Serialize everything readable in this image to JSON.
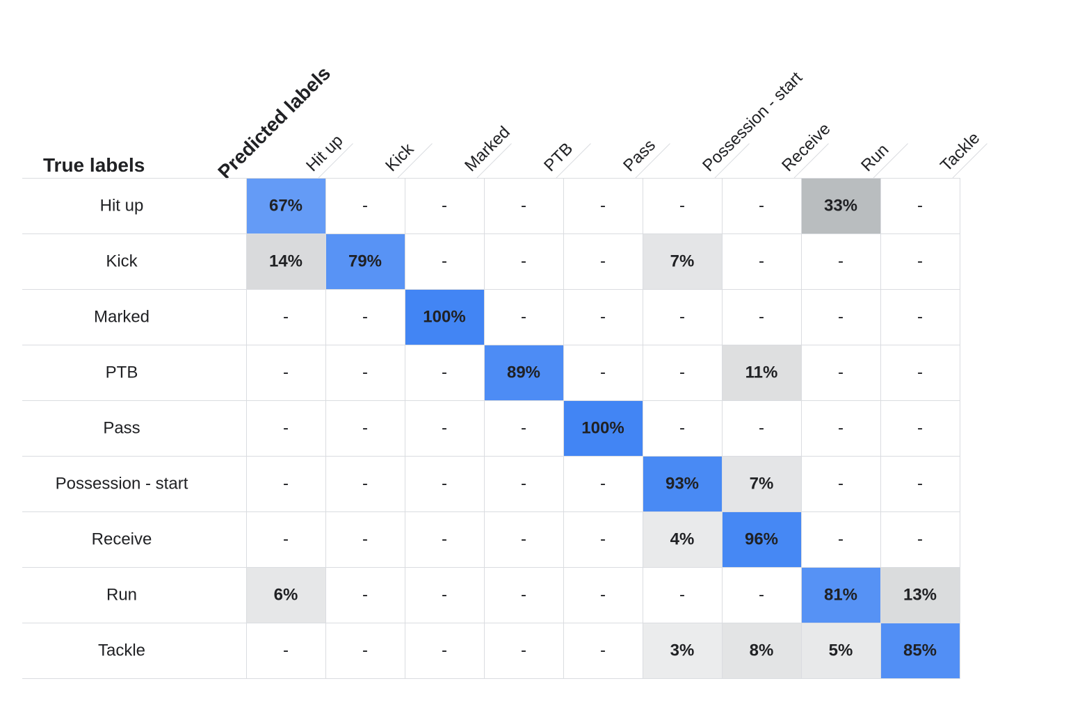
{
  "chart_data": {
    "type": "heatmap",
    "title": "",
    "row_axis_title": "True labels",
    "col_axis_title": "Predicted labels",
    "rows": [
      "Hit up",
      "Kick",
      "Marked",
      "PTB",
      "Pass",
      "Possession - start",
      "Receive",
      "Run",
      "Tackle"
    ],
    "cols": [
      "Hit up",
      "Kick",
      "Marked",
      "PTB",
      "Pass",
      "Possession - start",
      "Receive",
      "Run",
      "Tackle"
    ],
    "values": [
      [
        67,
        null,
        null,
        null,
        null,
        null,
        null,
        33,
        null
      ],
      [
        14,
        79,
        null,
        null,
        null,
        7,
        null,
        null,
        null
      ],
      [
        null,
        null,
        100,
        null,
        null,
        null,
        null,
        null,
        null
      ],
      [
        null,
        null,
        null,
        89,
        null,
        null,
        11,
        null,
        null
      ],
      [
        null,
        null,
        null,
        null,
        100,
        null,
        null,
        null,
        null
      ],
      [
        null,
        null,
        null,
        null,
        null,
        93,
        7,
        null,
        null
      ],
      [
        null,
        null,
        null,
        null,
        null,
        4,
        96,
        null,
        null
      ],
      [
        6,
        null,
        null,
        null,
        null,
        null,
        null,
        81,
        13
      ],
      [
        null,
        null,
        null,
        null,
        null,
        3,
        8,
        5,
        85
      ]
    ],
    "value_suffix": "%",
    "empty_text": "-",
    "colors": {
      "correct": "#4285f4",
      "incorrect": "#80868b",
      "grid": "#dadce0",
      "text": "#202124",
      "background": "#ffffff"
    }
  }
}
